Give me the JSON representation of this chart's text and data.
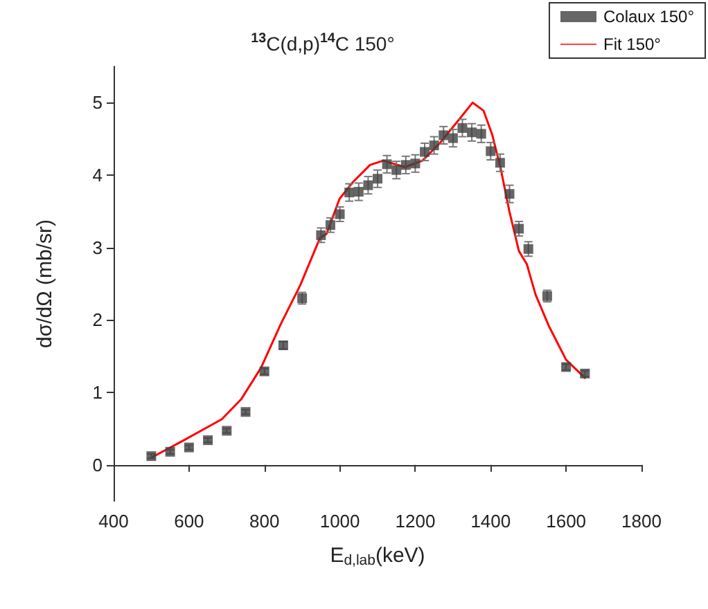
{
  "chart_data": {
    "type": "scatter",
    "title": "$^{13}$C(d,p)$^{14}$C 150°",
    "xlabel": "E$_{d,lab}$(keV)",
    "ylabel": "dσ/dΩ (mb/sr)",
    "xlim": [
      400,
      1800
    ],
    "xticks": [
      400,
      600,
      800,
      1000,
      1200,
      1400,
      1600,
      1800
    ],
    "ylim": [
      -0.5,
      5.5
    ],
    "yticks": [
      0,
      1,
      2,
      3,
      4,
      5
    ],
    "grid": false,
    "legend": "top right",
    "marker": "square",
    "series": [
      {
        "name": "Colaux 150°",
        "color": "#404040",
        "x": [
          500,
          550,
          600,
          650,
          700,
          750,
          800,
          850,
          900,
          950,
          975,
          1000,
          1025,
          1050,
          1075,
          1100,
          1125,
          1150,
          1175,
          1200,
          1225,
          1250,
          1275,
          1300,
          1325,
          1350,
          1375,
          1400,
          1425,
          1450,
          1475,
          1500,
          1550,
          1600,
          1650
        ],
        "values": [
          0.12,
          0.18,
          0.24,
          0.34,
          0.47,
          0.73,
          1.29,
          1.65,
          2.3,
          3.17,
          3.31,
          3.46,
          3.76,
          3.77,
          3.86,
          3.95,
          4.15,
          4.07,
          4.14,
          4.16,
          4.32,
          4.41,
          4.55,
          4.51,
          4.65,
          4.59,
          4.57,
          4.33,
          4.17,
          3.74,
          3.26,
          2.98,
          2.33,
          1.35,
          1.26
        ],
        "errors": [
          0.03,
          0.03,
          0.03,
          0.03,
          0.03,
          0.03,
          0.04,
          0.05,
          0.08,
          0.1,
          0.1,
          0.1,
          0.12,
          0.12,
          0.12,
          0.12,
          0.12,
          0.12,
          0.12,
          0.12,
          0.12,
          0.12,
          0.12,
          0.12,
          0.12,
          0.12,
          0.12,
          0.12,
          0.12,
          0.12,
          0.1,
          0.1,
          0.08,
          0.04,
          0.04
        ]
      },
      {
        "name": "Fit 150°",
        "type": "line",
        "color": "#ff0000",
        "marker": "none",
        "line_style": "solid",
        "x": [
          500,
          583,
          687,
          739,
          791,
          843,
          895,
          947,
          965,
          999,
          1034,
          1080,
          1115,
          1173,
          1219,
          1265,
          1312,
          1352,
          1381,
          1404,
          1427,
          1450,
          1475,
          1496,
          1519,
          1554,
          1600,
          1650
        ],
        "values": [
          0.1,
          0.33,
          0.63,
          0.91,
          1.34,
          1.94,
          2.48,
          3.13,
          3.19,
          3.67,
          3.9,
          4.14,
          4.2,
          4.11,
          4.2,
          4.44,
          4.74,
          5.0,
          4.89,
          4.56,
          4.08,
          3.49,
          2.95,
          2.77,
          2.35,
          1.92,
          1.45,
          1.2
        ]
      }
    ]
  }
}
